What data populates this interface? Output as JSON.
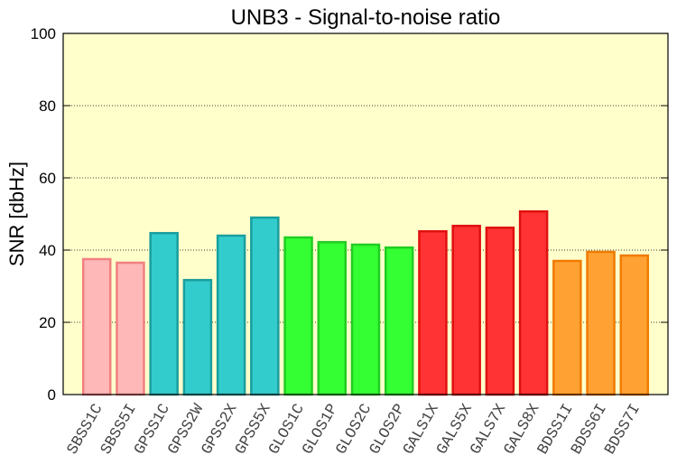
{
  "chart_data": {
    "type": "bar",
    "title": "UNB3 - Signal-to-noise ratio",
    "y_label": "SNR [dbHz]",
    "categories": [
      "SBSS1C",
      "SBSS5I",
      "GPSS1C",
      "GPSS2W",
      "GPSS2X",
      "GPSS5X",
      "GLOS1C",
      "GLOS1P",
      "GLOS2C",
      "GLOS2P",
      "GALS1X",
      "GALS5X",
      "GALS7X",
      "GALS8X",
      "BDSS1I",
      "BDSS6I",
      "BDSS7I"
    ],
    "values": [
      37.5,
      36.5,
      44.7,
      31.7,
      44,
      49,
      43.5,
      42.2,
      41.5,
      40.7,
      45.2,
      46.7,
      46.2,
      50.7,
      37,
      39.5,
      38.5
    ],
    "colors": [
      "#ffb8b8",
      "#ffb8b8",
      "#33cccc",
      "#33cccc",
      "#33cccc",
      "#33cccc",
      "#33ff33",
      "#33ff33",
      "#33ff33",
      "#33ff33",
      "#ff3333",
      "#ff3333",
      "#ff3333",
      "#ff3333",
      "#ffa233",
      "#ffa233",
      "#ffa233"
    ],
    "edge_colors": [
      "#f08080",
      "#f08080",
      "#1a9e9e",
      "#1a9e9e",
      "#1a9e9e",
      "#1a9e9e",
      "#22cc22",
      "#22cc22",
      "#22cc22",
      "#22cc22",
      "#e01010",
      "#e01010",
      "#e01010",
      "#e01010",
      "#f07a00",
      "#f07a00",
      "#f07a00"
    ],
    "ylim": [
      0,
      100
    ],
    "yticks": [
      0,
      20,
      40,
      60,
      80,
      100
    ],
    "grid": true
  }
}
